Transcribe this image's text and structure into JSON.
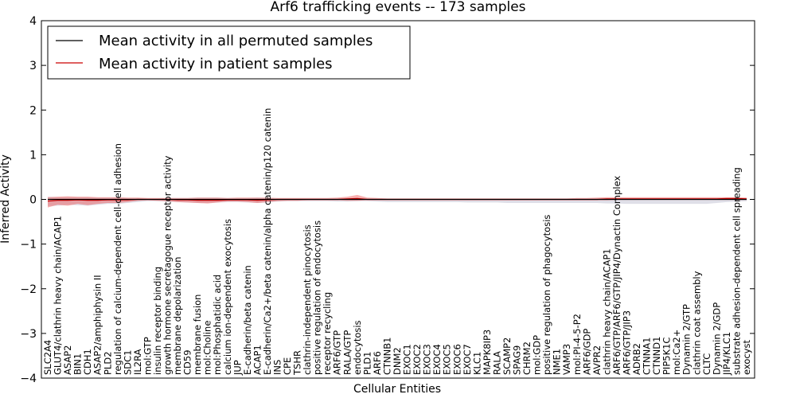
{
  "chart_data": {
    "type": "line",
    "title": "Arf6 trafficking events -- 173 samples",
    "xlabel": "Cellular Entities",
    "ylabel": "Inferred Activity",
    "ylim": [
      -4,
      4
    ],
    "yticks": [
      -4,
      -3,
      -2,
      -1,
      0,
      1,
      2,
      3,
      4
    ],
    "ytick_labels": [
      "−4",
      "−3",
      "−2",
      "−1",
      "0",
      "1",
      "2",
      "3",
      "4"
    ],
    "legend_position": "top-left",
    "categories": [
      "SLC2A4",
      "GLUT4/clathrin heavy chain/ACAP1",
      "ASAP2",
      "BIN1",
      "CDH1",
      "ASAP2/amphiphysin II",
      "PLD2",
      "regulation of calcium-dependent cell-cell adhesion",
      "SDC1",
      "IL2RA",
      "mol:GTP",
      "insulin receptor binding",
      "growth hormone secretagogue receptor activity",
      "membrane depolarization",
      "CD59",
      "membrane fusion",
      "mol:Choline",
      "mol:Phosphatidic acid",
      "calcium ion-dependent exocytosis",
      "JUP",
      "E-cadherin/beta catenin",
      "ACAP1",
      "E-cadherin/Ca2+/beta catenin/alpha catenin/p120 catenin",
      "INS",
      "CPE",
      "TSHR",
      "clathrin-independent pinocytosis",
      "positive regulation of endocytosis",
      "receptor recycling",
      "ARF6/GTP",
      "RALA/GTP",
      "endocytosis",
      "PLD1",
      "ARF6",
      "CTNNB1",
      "DNM2",
      "EXOC1",
      "EXOC2",
      "EXOC3",
      "EXOC4",
      "EXOC5",
      "EXOC6",
      "EXOC7",
      "KLC1",
      "MAPK8IP3",
      "RALA",
      "SCAMP2",
      "SPAG9",
      "CHRM2",
      "mol:GDP",
      "positive regulation of phagocytosis",
      "NME1",
      "VAMP3",
      "mol:PI-4-5-P2",
      "ARF6/GDP",
      "AVPR2",
      "clathrin heavy chain/ACAP1",
      "ARF6/GTP/ARF6/GTP/JIP4/Dynactin Complex",
      "ARF6/GTP/JIP3",
      "ADRB2",
      "CTNNA1",
      "CTNND1",
      "PIP5K1C",
      "mol:Ca2+",
      "Dynamin 2/GTP",
      "clathrin coat assembly",
      "CLTC",
      "Dynamin 2/GDP",
      "JIP4/KLC1",
      "substrate adhesion-dependent cell spreading",
      "exocyst"
    ],
    "series": [
      {
        "name": "Mean activity in all permuted samples",
        "color": "#000000",
        "values": [
          0,
          0,
          0,
          0,
          0,
          0,
          0,
          0,
          0,
          0,
          0,
          0,
          0,
          0,
          0,
          0,
          0,
          0,
          0,
          0,
          0,
          0,
          0,
          0,
          0,
          0,
          0,
          0,
          0,
          0,
          0,
          0,
          0,
          0,
          0,
          0,
          0,
          0,
          0,
          0,
          0,
          0,
          0,
          0,
          0,
          0,
          0,
          0,
          0,
          0,
          0,
          0,
          0,
          0,
          0,
          0,
          0,
          0,
          0,
          0,
          0,
          0,
          0,
          0,
          0,
          0,
          0,
          0,
          0,
          0,
          0
        ],
        "band_lower": [
          -0.15,
          -0.14,
          -0.12,
          -0.13,
          -0.14,
          -0.12,
          -0.1,
          -0.1,
          -0.08,
          -0.06,
          -0.04,
          -0.04,
          -0.05,
          -0.06,
          -0.07,
          -0.08,
          -0.08,
          -0.07,
          -0.06,
          -0.06,
          -0.07,
          -0.08,
          -0.07,
          -0.05,
          -0.04,
          -0.04,
          -0.04,
          -0.04,
          -0.04,
          -0.05,
          -0.05,
          -0.04,
          -0.04,
          -0.05,
          -0.06,
          -0.06,
          -0.06,
          -0.06,
          -0.06,
          -0.06,
          -0.06,
          -0.06,
          -0.07,
          -0.07,
          -0.07,
          -0.07,
          -0.08,
          -0.08,
          -0.08,
          -0.08,
          -0.08,
          -0.08,
          -0.08,
          -0.08,
          -0.08,
          -0.08,
          -0.09,
          -0.09,
          -0.1,
          -0.1,
          -0.1,
          -0.1,
          -0.1,
          -0.1,
          -0.1,
          -0.1,
          -0.1,
          -0.08,
          -0.06,
          -0.05,
          -0.04
        ],
        "band_upper": [
          0.06,
          0.05,
          0.05,
          0.05,
          0.05,
          0.04,
          0.04,
          0.04,
          0.03,
          0.03,
          0.02,
          0.02,
          0.03,
          0.03,
          0.03,
          0.04,
          0.04,
          0.04,
          0.03,
          0.03,
          0.03,
          0.04,
          0.03,
          0.02,
          0.02,
          0.02,
          0.02,
          0.02,
          0.02,
          0.02,
          0.02,
          0.02,
          0.02,
          0.02,
          0.02,
          0.02,
          0.02,
          0.02,
          0.02,
          0.02,
          0.02,
          0.02,
          0.02,
          0.02,
          0.02,
          0.02,
          0.02,
          0.02,
          0.02,
          0.02,
          0.02,
          0.02,
          0.02,
          0.02,
          0.02,
          0.02,
          0.02,
          0.02,
          0.02,
          0.02,
          0.02,
          0.02,
          0.02,
          0.02,
          0.02,
          0.02,
          0.02,
          0.02,
          0.02,
          0.02,
          0.02
        ]
      },
      {
        "name": "Mean activity in patient samples",
        "color": "#cc0000",
        "values": [
          -0.04,
          -0.02,
          -0.02,
          -0.01,
          -0.02,
          -0.02,
          -0.01,
          -0.01,
          -0.01,
          0,
          0,
          0,
          0,
          -0.01,
          -0.01,
          -0.02,
          -0.02,
          -0.02,
          -0.01,
          -0.01,
          -0.01,
          -0.02,
          -0.01,
          0,
          0,
          0,
          0,
          0,
          0,
          0,
          0.01,
          0.02,
          0,
          0,
          0,
          0,
          0,
          0,
          0,
          0,
          0,
          0,
          0,
          0,
          0,
          0,
          0,
          0,
          0,
          0,
          0,
          0,
          0,
          0,
          0,
          0,
          0.01,
          0.01,
          0.01,
          0.01,
          0.01,
          0.01,
          0.01,
          0.01,
          0.01,
          0.01,
          0.01,
          0.01,
          0.02,
          0.02,
          0.01
        ],
        "band_lower": [
          -0.18,
          -0.12,
          -0.14,
          -0.1,
          -0.13,
          -0.1,
          -0.08,
          -0.08,
          -0.06,
          -0.03,
          -0.02,
          -0.03,
          -0.04,
          -0.06,
          -0.07,
          -0.08,
          -0.09,
          -0.07,
          -0.05,
          -0.05,
          -0.06,
          -0.08,
          -0.06,
          -0.04,
          -0.03,
          -0.03,
          -0.02,
          -0.02,
          -0.02,
          -0.02,
          -0.03,
          -0.03,
          -0.02,
          -0.02,
          -0.02,
          -0.02,
          -0.02,
          -0.02,
          -0.02,
          -0.02,
          -0.02,
          -0.02,
          -0.02,
          -0.02,
          -0.02,
          -0.02,
          -0.02,
          -0.02,
          -0.02,
          -0.02,
          -0.02,
          -0.02,
          -0.02,
          -0.02,
          -0.02,
          -0.02,
          -0.02,
          -0.01,
          -0.01,
          -0.01,
          -0.01,
          -0.01,
          -0.01,
          -0.01,
          -0.01,
          -0.01,
          -0.01,
          -0.01,
          -0.01,
          -0.01,
          -0.01
        ],
        "band_upper": [
          0.05,
          0.06,
          0.07,
          0.06,
          0.06,
          0.05,
          0.05,
          0.05,
          0.04,
          0.04,
          0.03,
          0.03,
          0.03,
          0.03,
          0.03,
          0.04,
          0.04,
          0.04,
          0.03,
          0.04,
          0.04,
          0.04,
          0.04,
          0.03,
          0.03,
          0.03,
          0.03,
          0.03,
          0.03,
          0.04,
          0.06,
          0.1,
          0.04,
          0.03,
          0.02,
          0.02,
          0.02,
          0.02,
          0.02,
          0.02,
          0.02,
          0.02,
          0.02,
          0.02,
          0.02,
          0.02,
          0.02,
          0.02,
          0.02,
          0.02,
          0.02,
          0.02,
          0.02,
          0.03,
          0.03,
          0.04,
          0.05,
          0.05,
          0.05,
          0.05,
          0.05,
          0.05,
          0.05,
          0.05,
          0.05,
          0.05,
          0.05,
          0.05,
          0.05,
          0.05,
          0.04
        ]
      }
    ]
  }
}
